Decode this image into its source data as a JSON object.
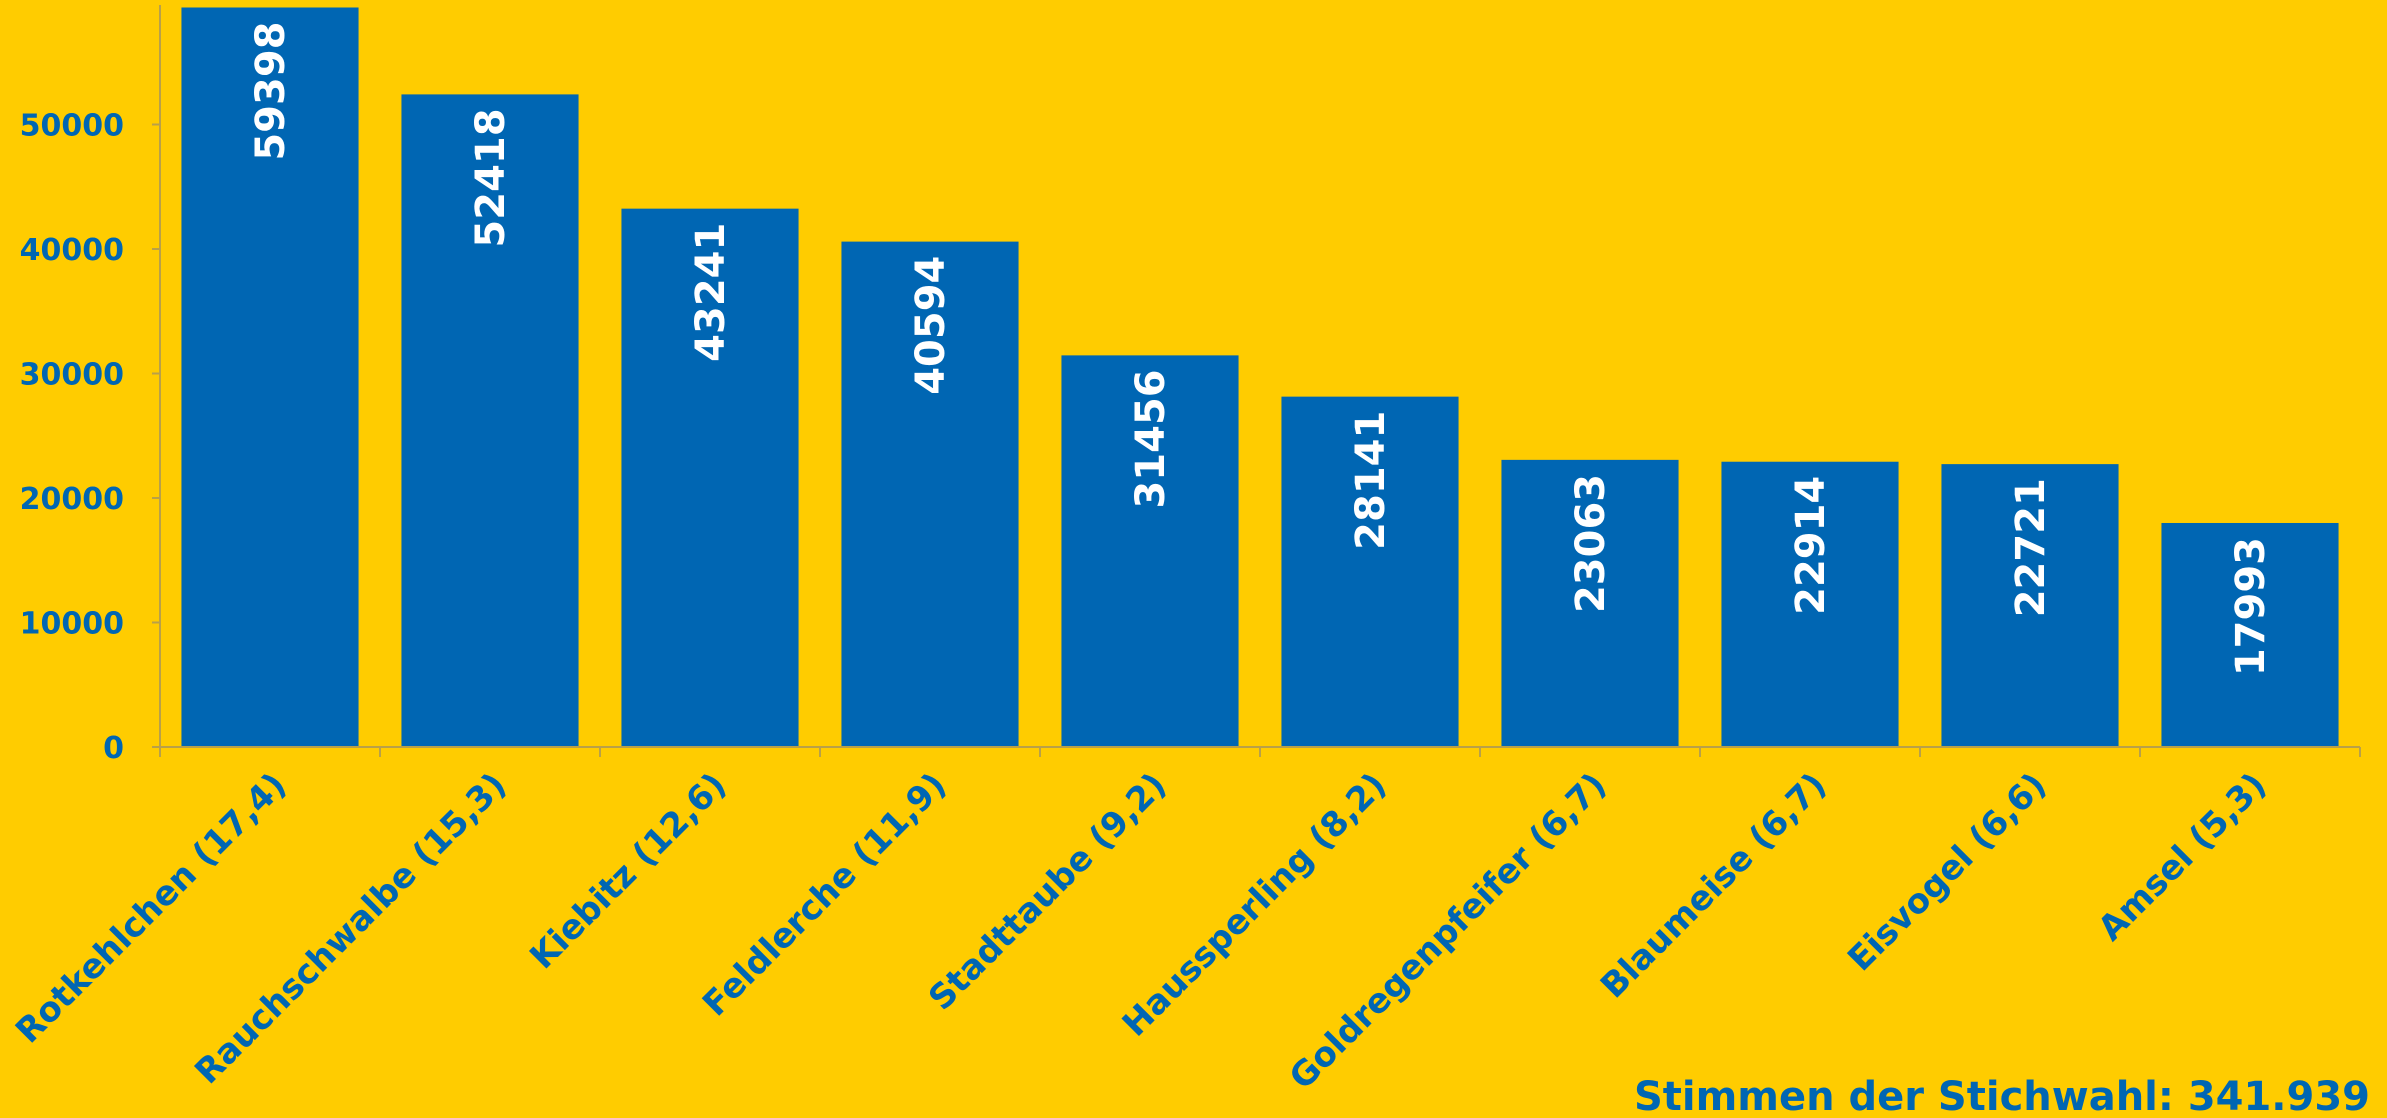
{
  "chart_data": {
    "type": "bar",
    "categories": [
      "Rotkehlchen (17,4)",
      "Rauchschwalbe (15,3)",
      "Kiebitz (12,6)",
      "Feldlerche (11,9)",
      "Stadttaube (9,2)",
      "Haussperling (8,2)",
      "Goldregenpfeifer (6,7)",
      "Blaumeise (6,7)",
      "Eisvogel (6,6)",
      "Amsel (5,3)"
    ],
    "values": [
      59398,
      52418,
      43241,
      40594,
      31456,
      28141,
      23063,
      22914,
      22721,
      17993
    ],
    "yticks": [
      0,
      10000,
      20000,
      30000,
      40000,
      50000
    ],
    "ylim": [
      0,
      60000
    ],
    "grid": false,
    "legend": "none",
    "footer": "Stimmen  der Stichwahl: 341.939",
    "colors": {
      "background": "#FFCC00",
      "bar": "#0066B3",
      "text": "#0066B3",
      "value_label": "#FFFFFF",
      "axis": "#B8A04A"
    }
  }
}
